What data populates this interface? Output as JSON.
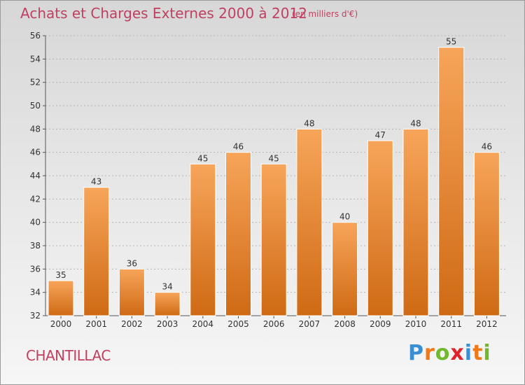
{
  "title": "Achats et Charges Externes 2000 à 2012",
  "subtitle": "(en milliers d'€)",
  "commune": "CHANTILLAC",
  "logo": {
    "letters": [
      "P",
      "r",
      "o",
      "x",
      "i",
      "t",
      "i"
    ],
    "colors": [
      "#3a8fd4",
      "#f07a18",
      "#72b82c",
      "#e0242c",
      "#3a8fd4",
      "#f07a18",
      "#72b82c"
    ]
  },
  "colors": {
    "title": "#c04060",
    "bar_top": "#f7a55a",
    "bar_bottom": "#cf6a14",
    "axis": "#555555",
    "grid": "#b5b5b5",
    "label": "#333333"
  },
  "chart_data": {
    "type": "bar",
    "categories": [
      "2000",
      "2001",
      "2002",
      "2003",
      "2004",
      "2005",
      "2006",
      "2007",
      "2008",
      "2009",
      "2010",
      "2011",
      "2012"
    ],
    "values": [
      35,
      43,
      36,
      34,
      45,
      46,
      45,
      48,
      40,
      47,
      48,
      55,
      46
    ],
    "ylim": [
      32,
      56
    ],
    "yticks": [
      32,
      34,
      36,
      38,
      40,
      42,
      44,
      46,
      48,
      50,
      52,
      54,
      56
    ],
    "grid": true,
    "data_labels": true
  }
}
